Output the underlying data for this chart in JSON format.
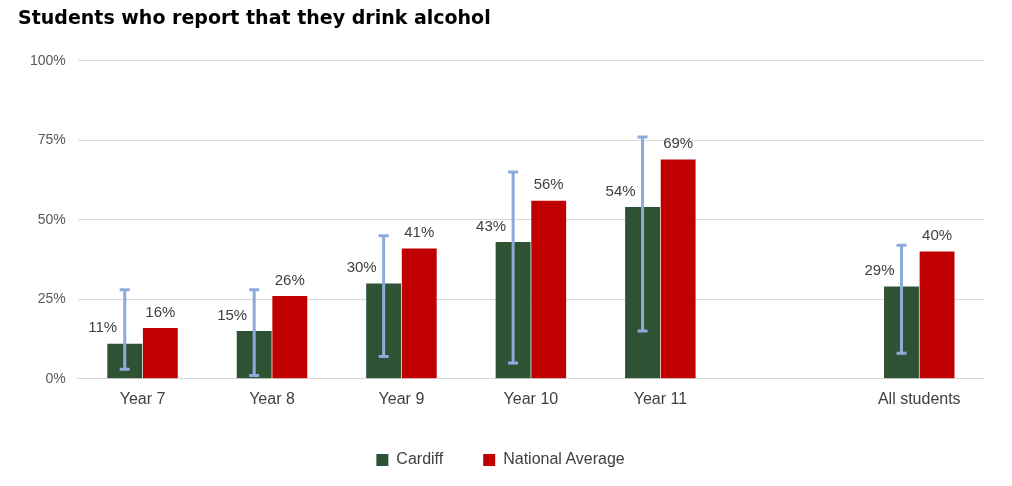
{
  "chart_data": {
    "type": "bar",
    "title": "Students who report that they drink alcohol",
    "categories": [
      "Year 7",
      "Year 8",
      "Year 9",
      "Year 10",
      "Year 11",
      null,
      "All students"
    ],
    "series": [
      {
        "name": "Cardiff",
        "color": "#2e5233",
        "values": [
          11,
          15,
          30,
          43,
          54,
          null,
          29
        ],
        "value_labels": [
          "11%",
          "15%",
          "30%",
          "43%",
          "54%",
          null,
          "29%"
        ],
        "errors": [
          [
            3,
            28
          ],
          [
            1,
            28
          ],
          [
            7,
            45
          ],
          [
            5,
            65
          ],
          [
            15,
            76
          ],
          null,
          [
            8,
            42
          ]
        ]
      },
      {
        "name": "National Average",
        "color": "#c00000",
        "values": [
          16,
          26,
          41,
          56,
          69,
          null,
          40
        ],
        "value_labels": [
          "16%",
          "26%",
          "41%",
          "56%",
          "69%",
          null,
          "40%"
        ]
      }
    ],
    "ylim": [
      0,
      100
    ],
    "yticks": [
      {
        "value": 0,
        "label": "0%"
      },
      {
        "value": 25,
        "label": "25%"
      },
      {
        "value": 50,
        "label": "50%"
      },
      {
        "value": 75,
        "label": "75%"
      },
      {
        "value": 100,
        "label": "100%"
      }
    ],
    "grid": "y",
    "legend": "bottom"
  }
}
